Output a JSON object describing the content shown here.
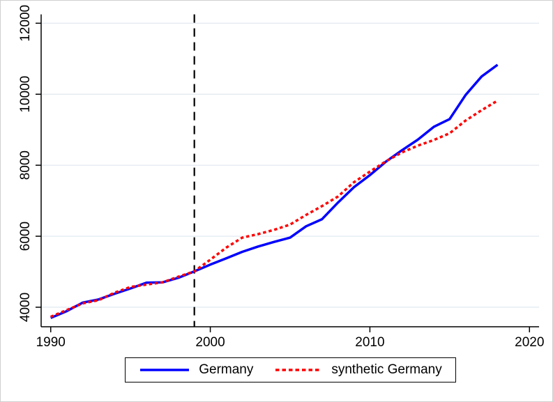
{
  "figure": {
    "background": "#ffffff",
    "border_color": "#cfcfcf"
  },
  "chart_data": {
    "type": "line",
    "title": "",
    "xlabel": "",
    "ylabel": "",
    "x": [
      1990,
      1991,
      1992,
      1993,
      1994,
      1995,
      1996,
      1997,
      1998,
      1999,
      2000,
      2001,
      2002,
      2003,
      2004,
      2005,
      2006,
      2007,
      2008,
      2009,
      2010,
      2011,
      2012,
      2013,
      2014,
      2015,
      2016,
      2017,
      2018
    ],
    "series": [
      {
        "name": "Germany",
        "color": "#0000ff",
        "dash": "solid",
        "values": [
          3700,
          3890,
          4130,
          4220,
          4380,
          4530,
          4690,
          4700,
          4830,
          5010,
          5200,
          5380,
          5560,
          5710,
          5840,
          5960,
          6280,
          6480,
          6950,
          7380,
          7720,
          8100,
          8420,
          8720,
          9080,
          9300,
          9980,
          10500,
          10830
        ]
      },
      {
        "name": "synthetic Germany",
        "color": "#ff0000",
        "dash": "dashed",
        "values": [
          3730,
          3920,
          4110,
          4200,
          4410,
          4570,
          4640,
          4700,
          4860,
          5010,
          5340,
          5680,
          5960,
          6060,
          6180,
          6330,
          6600,
          6850,
          7120,
          7520,
          7820,
          8110,
          8360,
          8550,
          8710,
          8900,
          9260,
          9550,
          9820
        ]
      }
    ],
    "xlim": [
      1989.4,
      2020.6
    ],
    "ylim": [
      3450,
      12250
    ],
    "x_ticks": [
      1990,
      2000,
      2010,
      2020
    ],
    "y_ticks": [
      4000,
      6000,
      8000,
      10000,
      12000
    ],
    "grid": true,
    "gridline_color": "#e4ebf2",
    "axis_color": "#000000",
    "treatment_line": {
      "x": 1999,
      "color": "#000000",
      "style": "dashed"
    },
    "legend": {
      "position": "bottom",
      "border": true
    }
  }
}
